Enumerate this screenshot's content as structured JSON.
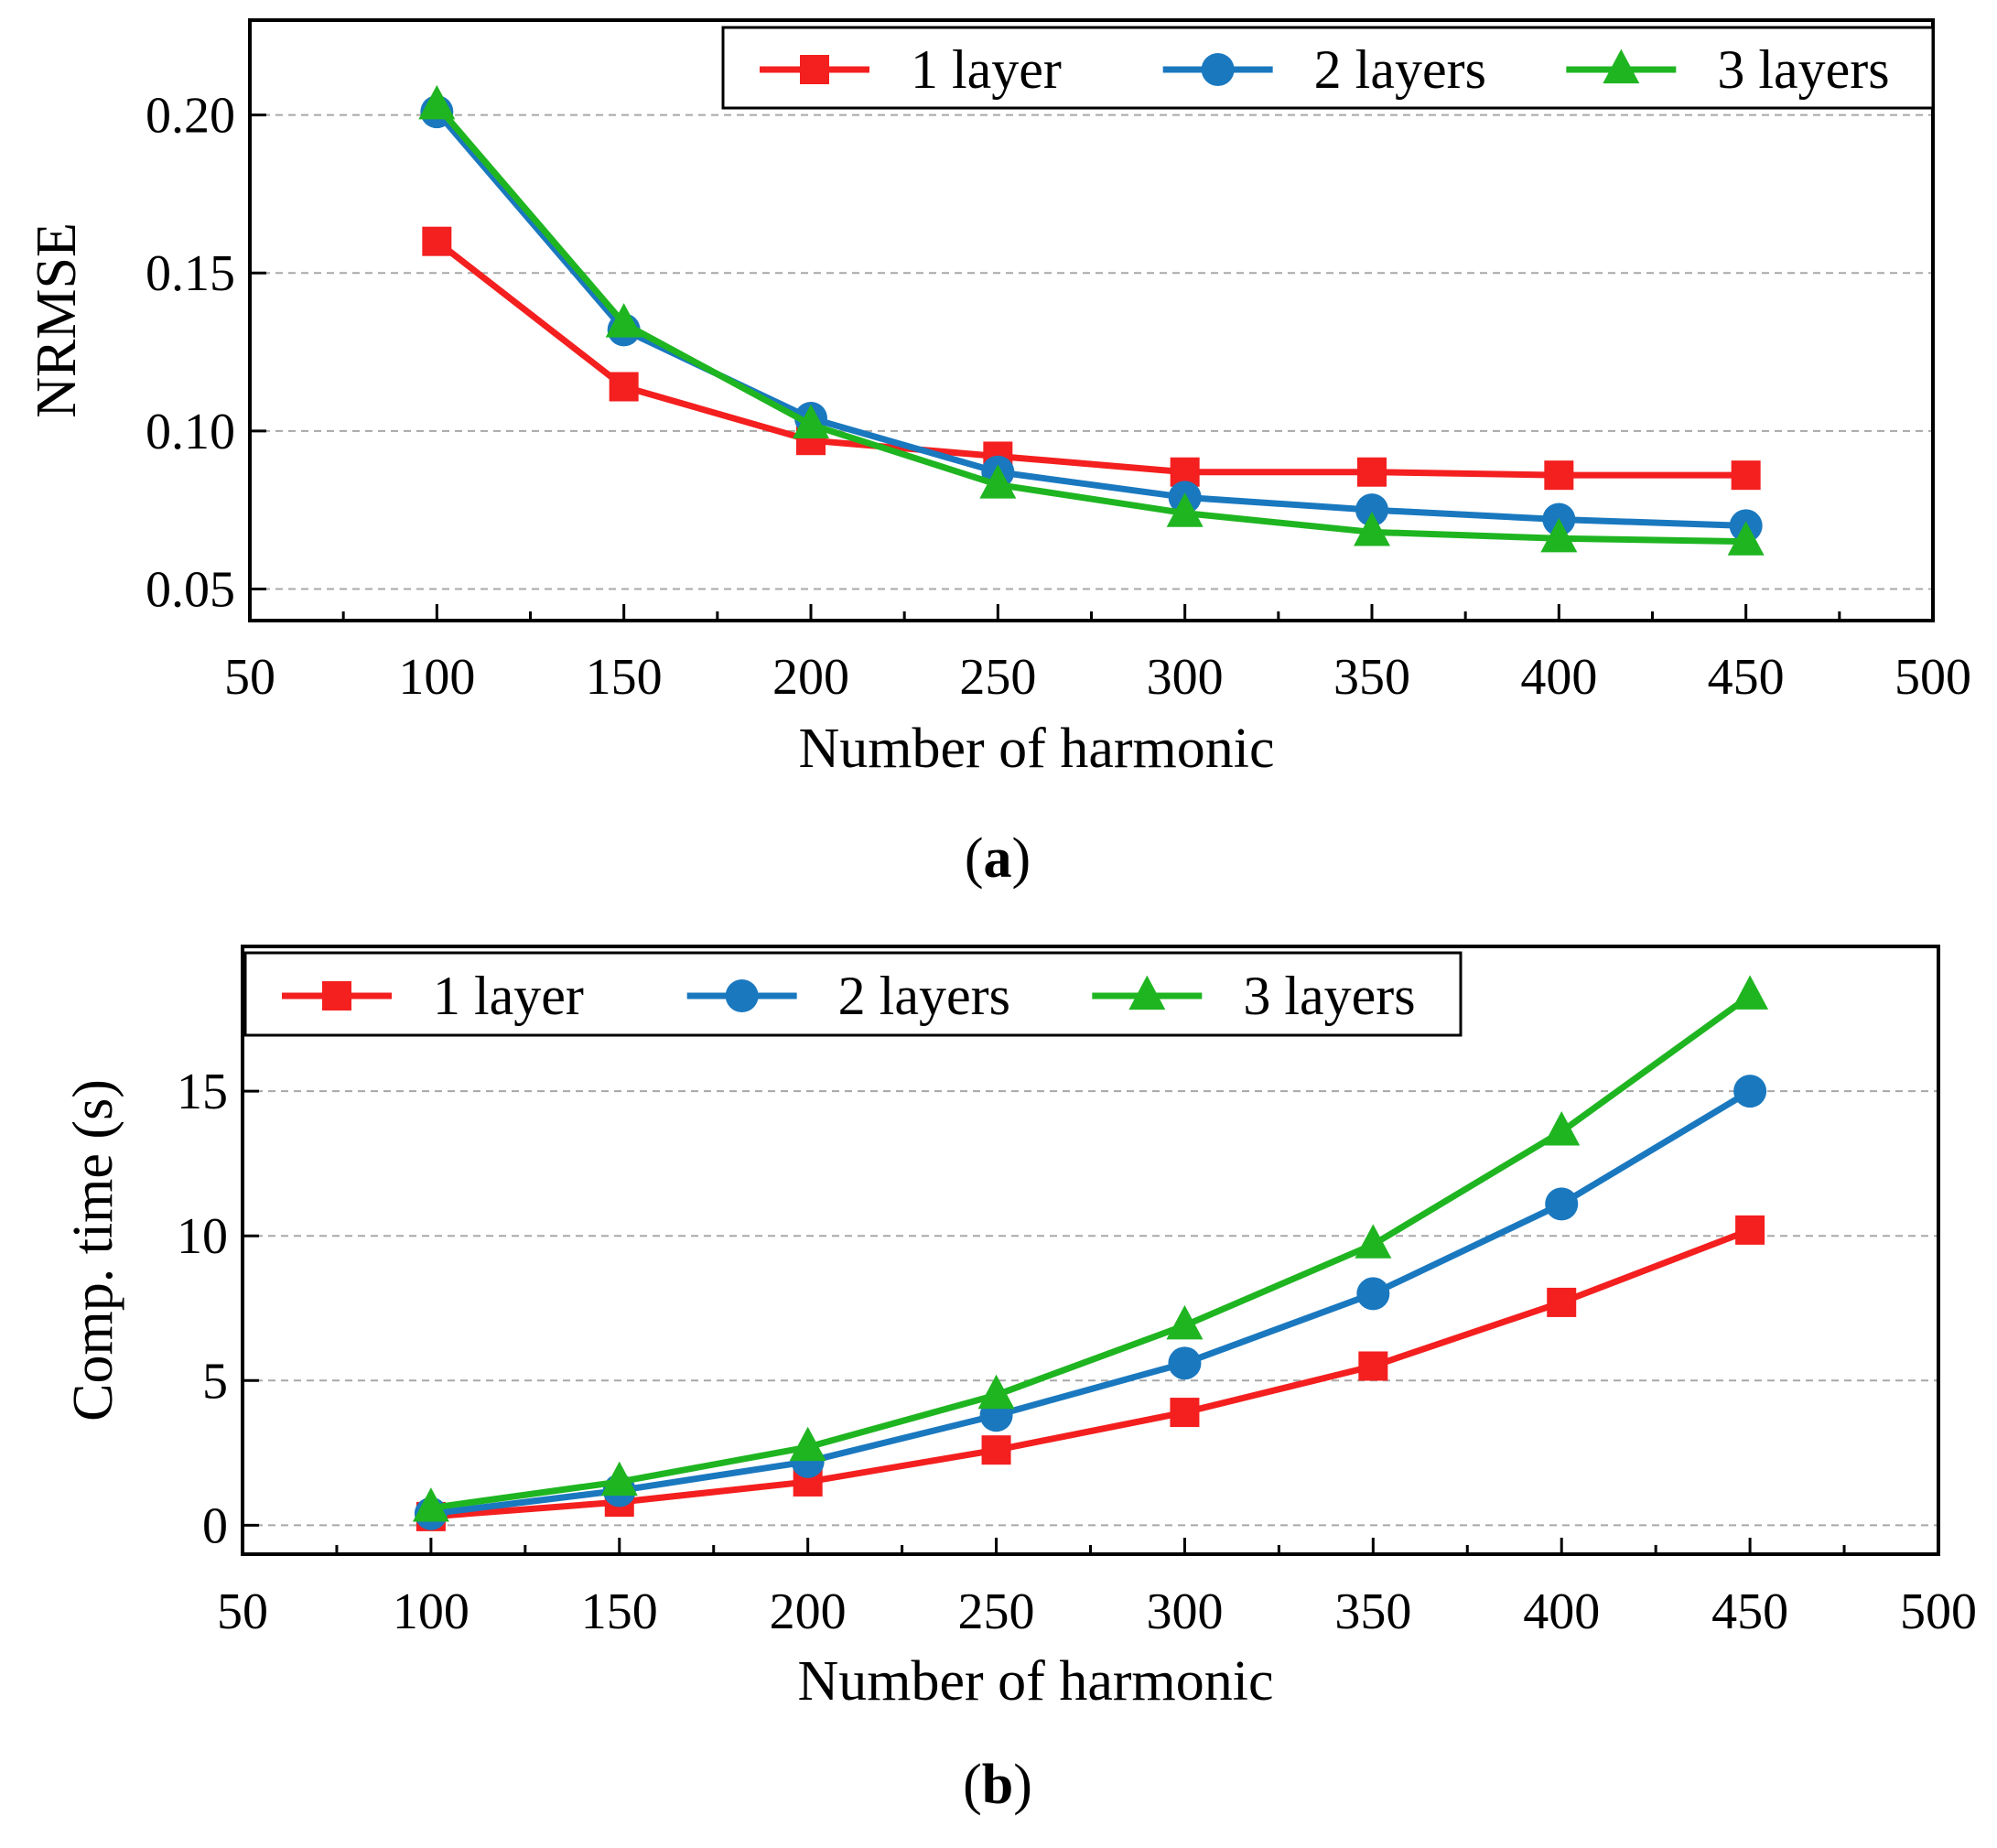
{
  "colors": {
    "1 layer": "#f41f1f",
    "2 layers": "#1a78bf",
    "3 layers": "#1fb521"
  },
  "chart_data": [
    {
      "type": "line",
      "panel_label": "a",
      "title": "",
      "xlabel": "Number of harmonic",
      "ylabel": "NRMSE",
      "xlim": [
        50,
        500
      ],
      "ylim": [
        0.04,
        0.23
      ],
      "xticks": [
        50,
        100,
        150,
        200,
        250,
        300,
        350,
        400,
        450,
        500
      ],
      "xtick_labels": [
        "50",
        "100",
        "150",
        "200",
        "250",
        "300",
        "350",
        "400",
        "450",
        "500"
      ],
      "yticks": [
        0.05,
        0.1,
        0.15,
        0.2
      ],
      "ytick_labels": [
        "0.05",
        "0.10",
        "0.15",
        "0.20"
      ],
      "grid": "horizontal dashed",
      "legend_position": "top-right",
      "x": [
        100,
        150,
        200,
        250,
        300,
        350,
        400,
        450
      ],
      "series": [
        {
          "name": "1 layer",
          "marker": "square",
          "values": [
            0.16,
            0.114,
            0.097,
            0.092,
            0.087,
            0.087,
            0.086,
            0.086
          ]
        },
        {
          "name": "2 layers",
          "marker": "circle",
          "values": [
            0.201,
            0.132,
            0.104,
            0.087,
            0.079,
            0.075,
            0.072,
            0.07
          ]
        },
        {
          "name": "3 layers",
          "marker": "triangle",
          "values": [
            0.203,
            0.134,
            0.102,
            0.083,
            0.074,
            0.068,
            0.066,
            0.065
          ]
        }
      ]
    },
    {
      "type": "line",
      "panel_label": "b",
      "title": "",
      "xlabel": "Number of harmonic",
      "ylabel": "Comp. time (s)",
      "xlim": [
        50,
        500
      ],
      "ylim": [
        -1,
        20
      ],
      "xticks": [
        50,
        100,
        150,
        200,
        250,
        300,
        350,
        400,
        450,
        500
      ],
      "xtick_labels": [
        "50",
        "100",
        "150",
        "200",
        "250",
        "300",
        "350",
        "400",
        "450",
        "500"
      ],
      "yticks": [
        0,
        5,
        10,
        15
      ],
      "ytick_labels": [
        "0",
        "5",
        "10",
        "15"
      ],
      "grid": "horizontal dashed",
      "legend_position": "top-left",
      "x": [
        100,
        150,
        200,
        250,
        300,
        350,
        400,
        450
      ],
      "series": [
        {
          "name": "1 layer",
          "marker": "square",
          "values": [
            0.3,
            0.8,
            1.5,
            2.6,
            3.9,
            5.5,
            7.7,
            10.2
          ]
        },
        {
          "name": "2 layers",
          "marker": "circle",
          "values": [
            0.4,
            1.2,
            2.2,
            3.8,
            5.6,
            8.0,
            11.1,
            15.0
          ]
        },
        {
          "name": "3 layers",
          "marker": "triangle",
          "values": [
            0.6,
            1.5,
            2.7,
            4.5,
            6.9,
            9.7,
            13.6,
            18.3
          ]
        }
      ]
    }
  ]
}
